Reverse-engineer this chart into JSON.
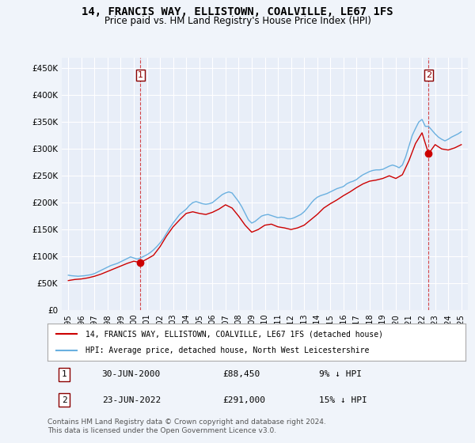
{
  "title": "14, FRANCIS WAY, ELLISTOWN, COALVILLE, LE67 1FS",
  "subtitle": "Price paid vs. HM Land Registry's House Price Index (HPI)",
  "ylabel_ticks": [
    "£0",
    "£50K",
    "£100K",
    "£150K",
    "£200K",
    "£250K",
    "£300K",
    "£350K",
    "£400K",
    "£450K"
  ],
  "ytick_values": [
    0,
    50000,
    100000,
    150000,
    200000,
    250000,
    300000,
    350000,
    400000,
    450000
  ],
  "ylim": [
    0,
    470000
  ],
  "xlim_start": 1994.5,
  "xlim_end": 2025.5,
  "background_color": "#f0f4fa",
  "plot_bg_color": "#e8eef8",
  "grid_color": "#ffffff",
  "hpi_color": "#6ab0e0",
  "price_color": "#cc0000",
  "dashed_color": "#cc0000",
  "transaction1": {
    "date": 2000.5,
    "price": 88450,
    "label": "1"
  },
  "transaction2": {
    "date": 2022.5,
    "price": 291000,
    "label": "2"
  },
  "legend_line1": "14, FRANCIS WAY, ELLISTOWN, COALVILLE, LE67 1FS (detached house)",
  "legend_line2": "HPI: Average price, detached house, North West Leicestershire",
  "annotation1_date": "30-JUN-2000",
  "annotation1_price": "£88,450",
  "annotation1_info": "9% ↓ HPI",
  "annotation2_date": "23-JUN-2022",
  "annotation2_price": "£291,000",
  "annotation2_info": "15% ↓ HPI",
  "footer1": "Contains HM Land Registry data © Crown copyright and database right 2024.",
  "footer2": "This data is licensed under the Open Government Licence v3.0.",
  "hpi_data_x": [
    1995,
    1995.25,
    1995.5,
    1995.75,
    1996,
    1996.25,
    1996.5,
    1996.75,
    1997,
    1997.25,
    1997.5,
    1997.75,
    1998,
    1998.25,
    1998.5,
    1998.75,
    1999,
    1999.25,
    1999.5,
    1999.75,
    2000,
    2000.25,
    2000.5,
    2000.75,
    2001,
    2001.25,
    2001.5,
    2001.75,
    2002,
    2002.25,
    2002.5,
    2002.75,
    2003,
    2003.25,
    2003.5,
    2003.75,
    2004,
    2004.25,
    2004.5,
    2004.75,
    2005,
    2005.25,
    2005.5,
    2005.75,
    2006,
    2006.25,
    2006.5,
    2006.75,
    2007,
    2007.25,
    2007.5,
    2007.75,
    2008,
    2008.25,
    2008.5,
    2008.75,
    2009,
    2009.25,
    2009.5,
    2009.75,
    2010,
    2010.25,
    2010.5,
    2010.75,
    2011,
    2011.25,
    2011.5,
    2011.75,
    2012,
    2012.25,
    2012.5,
    2012.75,
    2013,
    2013.25,
    2013.5,
    2013.75,
    2014,
    2014.25,
    2014.5,
    2014.75,
    2015,
    2015.25,
    2015.5,
    2015.75,
    2016,
    2016.25,
    2016.5,
    2016.75,
    2017,
    2017.25,
    2017.5,
    2017.75,
    2018,
    2018.25,
    2018.5,
    2018.75,
    2019,
    2019.25,
    2019.5,
    2019.75,
    2020,
    2020.25,
    2020.5,
    2020.75,
    2021,
    2021.25,
    2021.5,
    2021.75,
    2022,
    2022.25,
    2022.5,
    2022.75,
    2023,
    2023.25,
    2023.5,
    2023.75,
    2024,
    2024.25,
    2024.5,
    2024.75,
    2025
  ],
  "hpi_data_y": [
    65000,
    64000,
    63500,
    63000,
    63500,
    64000,
    65000,
    66000,
    68000,
    71000,
    74000,
    77000,
    80000,
    83000,
    85000,
    87000,
    90000,
    93000,
    96000,
    99000,
    97000,
    95000,
    97000,
    100000,
    103000,
    107000,
    112000,
    118000,
    125000,
    133000,
    143000,
    153000,
    162000,
    170000,
    178000,
    183000,
    188000,
    195000,
    200000,
    202000,
    200000,
    198000,
    197000,
    198000,
    200000,
    205000,
    210000,
    215000,
    218000,
    220000,
    218000,
    210000,
    202000,
    192000,
    180000,
    168000,
    162000,
    165000,
    170000,
    175000,
    177000,
    178000,
    176000,
    174000,
    172000,
    173000,
    172000,
    170000,
    170000,
    172000,
    175000,
    178000,
    183000,
    190000,
    198000,
    205000,
    210000,
    213000,
    215000,
    217000,
    220000,
    223000,
    226000,
    228000,
    230000,
    235000,
    238000,
    240000,
    243000,
    248000,
    252000,
    255000,
    258000,
    260000,
    261000,
    261000,
    262000,
    265000,
    268000,
    270000,
    268000,
    265000,
    270000,
    285000,
    305000,
    325000,
    338000,
    350000,
    355000,
    342000,
    342000,
    335000,
    328000,
    322000,
    318000,
    315000,
    318000,
    322000,
    325000,
    328000,
    332000
  ],
  "price_data_x": [
    1995,
    1995.5,
    1996,
    1996.5,
    1997,
    1997.5,
    1998,
    1998.5,
    1999,
    1999.5,
    2000,
    2000.5,
    2001,
    2001.5,
    2002,
    2002.5,
    2003,
    2003.5,
    2004,
    2004.5,
    2005,
    2005.5,
    2006,
    2006.5,
    2007,
    2007.5,
    2008,
    2008.5,
    2009,
    2009.5,
    2010,
    2010.5,
    2011,
    2011.5,
    2012,
    2012.5,
    2013,
    2013.5,
    2014,
    2014.5,
    2015,
    2015.5,
    2016,
    2016.5,
    2017,
    2017.5,
    2018,
    2018.5,
    2019,
    2019.5,
    2020,
    2020.5,
    2021,
    2021.5,
    2022,
    2022.5,
    2023,
    2023.5,
    2024,
    2024.5,
    2025
  ],
  "price_data_y": [
    55000,
    57000,
    58000,
    60000,
    63000,
    67000,
    72000,
    77000,
    82000,
    87000,
    91000,
    88450,
    95000,
    102000,
    118000,
    138000,
    155000,
    168000,
    180000,
    183000,
    180000,
    178000,
    182000,
    188000,
    196000,
    190000,
    175000,
    158000,
    145000,
    150000,
    158000,
    160000,
    155000,
    153000,
    150000,
    153000,
    158000,
    168000,
    178000,
    190000,
    198000,
    205000,
    213000,
    220000,
    228000,
    235000,
    240000,
    242000,
    245000,
    250000,
    245000,
    252000,
    278000,
    310000,
    330000,
    291000,
    308000,
    300000,
    298000,
    302000,
    308000
  ]
}
